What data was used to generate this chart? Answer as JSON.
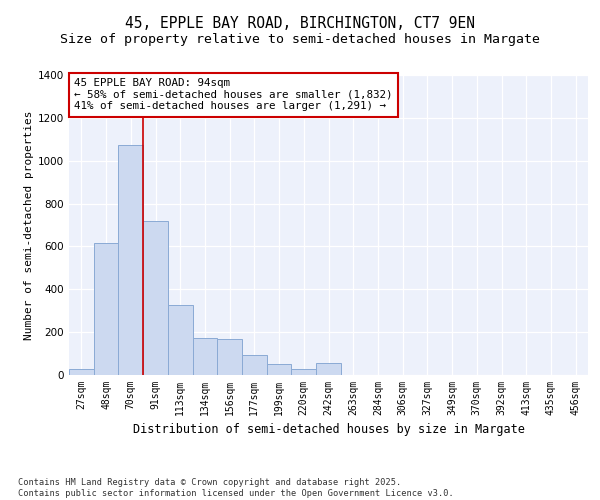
{
  "title_line1": "45, EPPLE BAY ROAD, BIRCHINGTON, CT7 9EN",
  "title_line2": "Size of property relative to semi-detached houses in Margate",
  "xlabel": "Distribution of semi-detached houses by size in Margate",
  "ylabel": "Number of semi-detached properties",
  "categories": [
    "27sqm",
    "48sqm",
    "70sqm",
    "91sqm",
    "113sqm",
    "134sqm",
    "156sqm",
    "177sqm",
    "199sqm",
    "220sqm",
    "242sqm",
    "263sqm",
    "284sqm",
    "306sqm",
    "327sqm",
    "349sqm",
    "370sqm",
    "392sqm",
    "413sqm",
    "435sqm",
    "456sqm"
  ],
  "values": [
    30,
    615,
    1075,
    720,
    325,
    175,
    170,
    95,
    50,
    30,
    55,
    0,
    0,
    0,
    0,
    0,
    0,
    0,
    0,
    0,
    0
  ],
  "bar_color": "#ccd9f0",
  "bar_edgecolor": "#8aaad4",
  "vline_pos": 2.5,
  "vline_color": "#cc0000",
  "annotation_text": "45 EPPLE BAY ROAD: 94sqm\n← 58% of semi-detached houses are smaller (1,832)\n41% of semi-detached houses are larger (1,291) →",
  "annotation_box_color": "#cc0000",
  "ylim": [
    0,
    1400
  ],
  "yticks": [
    0,
    200,
    400,
    600,
    800,
    1000,
    1200,
    1400
  ],
  "background_color": "#edf1fb",
  "footer_text": "Contains HM Land Registry data © Crown copyright and database right 2025.\nContains public sector information licensed under the Open Government Licence v3.0.",
  "title_fontsize": 10.5,
  "subtitle_fontsize": 9.5,
  "tick_fontsize": 7,
  "ylabel_fontsize": 8,
  "xlabel_fontsize": 8.5,
  "annotation_fontsize": 7.8
}
